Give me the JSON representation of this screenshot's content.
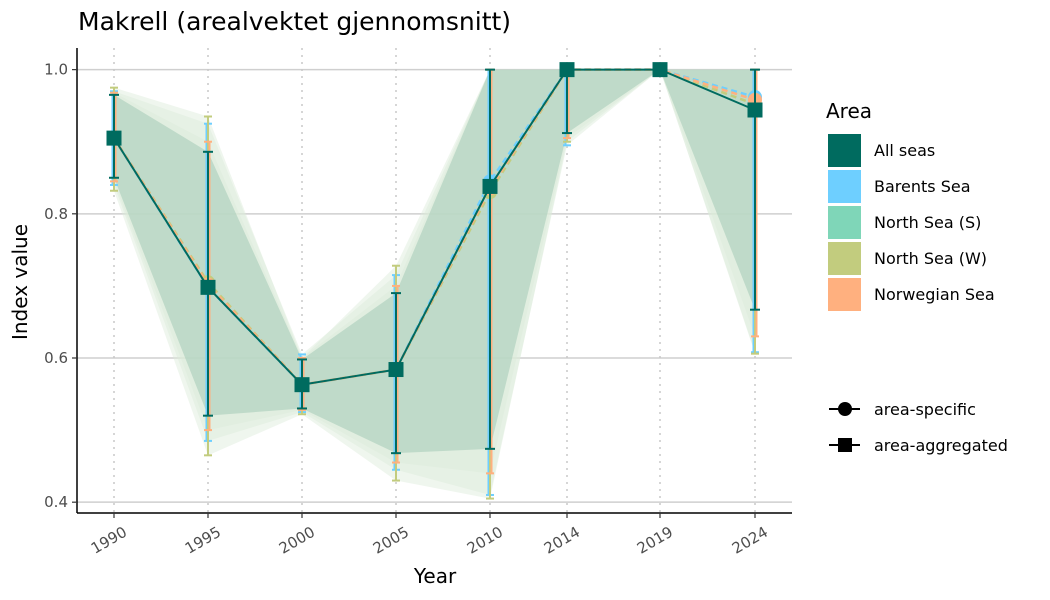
{
  "chart_data": {
    "type": "line",
    "title": "Makrell (arealvektet gjennomsnitt)",
    "xlabel": "Year",
    "ylabel": "Index value",
    "x": [
      "1990",
      "1995",
      "2000",
      "2005",
      "2010",
      "2014",
      "2019",
      "2024"
    ],
    "ylim": [
      0.385,
      1.03
    ],
    "yticks": [
      0.4,
      0.6,
      0.8,
      1.0
    ],
    "ytick_labels": [
      "0.4",
      "0.6",
      "0.8",
      "1.0"
    ],
    "grid": "horizontal major lines; vertical dotted lines at each year",
    "legend": {
      "position": "right",
      "area_title": "Area",
      "areas": [
        {
          "name": "All seas",
          "color": "#006B5F"
        },
        {
          "name": "Barents Sea",
          "color": "#6ECFFF"
        },
        {
          "name": "North Sea (S)",
          "color": "#7FD6B8"
        },
        {
          "name": "North Sea (W)",
          "color": "#C2CC7E"
        },
        {
          "name": "Norwegian Sea",
          "color": "#FFB07F"
        }
      ],
      "shapes": [
        {
          "name": "area-specific",
          "shape": "circle"
        },
        {
          "name": "area-aggregated",
          "shape": "square"
        }
      ]
    },
    "series": [
      {
        "name": "All seas",
        "marker": "square",
        "values": [
          0.905,
          0.698,
          0.563,
          0.584,
          0.838,
          1.0,
          1.0,
          0.944
        ],
        "lower": [
          0.85,
          0.52,
          0.53,
          0.468,
          0.474,
          0.912,
          1.0,
          0.667
        ],
        "upper": [
          0.965,
          0.886,
          0.598,
          0.69,
          1.0,
          1.0,
          1.0,
          1.0
        ]
      },
      {
        "name": "Barents Sea",
        "marker": "circle",
        "values": [
          0.905,
          0.698,
          0.563,
          0.584,
          0.845,
          1.0,
          1.0,
          0.962
        ],
        "lower": [
          0.84,
          0.485,
          0.525,
          0.445,
          0.41,
          0.895,
          1.0,
          0.608
        ],
        "upper": [
          0.97,
          0.925,
          0.605,
          0.715,
          1.0,
          1.0,
          1.0,
          1.0
        ]
      },
      {
        "name": "North Sea (W)",
        "marker": "circle",
        "values": [
          0.905,
          0.705,
          0.563,
          0.584,
          0.83,
          1.0,
          1.0,
          0.952
        ],
        "lower": [
          0.832,
          0.465,
          0.522,
          0.43,
          0.405,
          0.9,
          1.0,
          0.606
        ],
        "upper": [
          0.975,
          0.935,
          0.6,
          0.728,
          1.0,
          1.0,
          1.0,
          1.0
        ]
      },
      {
        "name": "Norwegian Sea",
        "marker": "circle",
        "values": [
          0.905,
          0.702,
          0.563,
          0.584,
          0.835,
          1.0,
          1.0,
          0.958
        ],
        "lower": [
          0.845,
          0.5,
          0.528,
          0.455,
          0.44,
          0.905,
          1.0,
          0.63
        ],
        "upper": [
          0.968,
          0.9,
          0.6,
          0.7,
          1.0,
          1.0,
          1.0,
          1.0
        ]
      }
    ]
  }
}
